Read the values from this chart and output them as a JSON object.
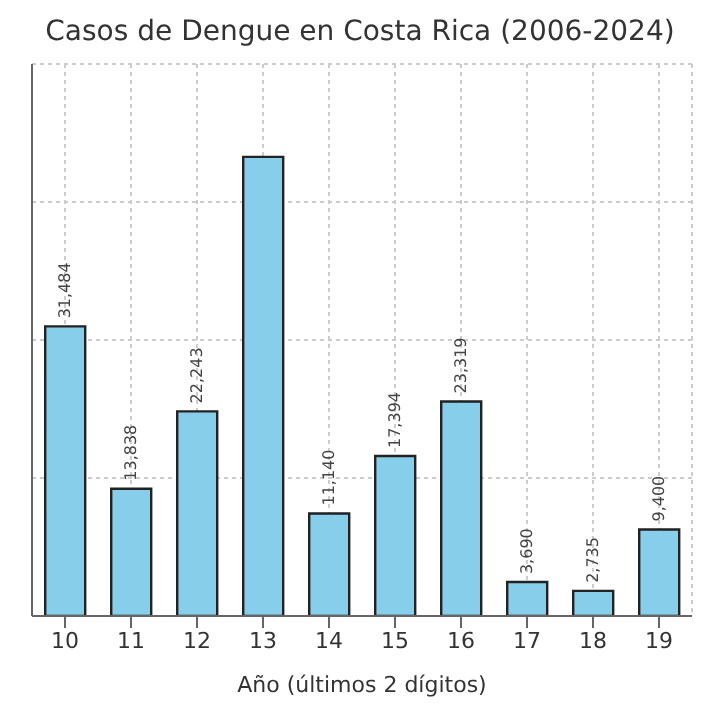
{
  "chart_data": {
    "type": "bar",
    "title": "Casos de Dengue en Costa Rica (2006-2024)",
    "xlabel": "Año (últimos 2 dígitos)",
    "categories": [
      "10",
      "11",
      "12",
      "13",
      "14",
      "15",
      "16",
      "17",
      "18",
      "19"
    ],
    "values": [
      31484,
      13838,
      22243,
      49900,
      11140,
      17394,
      23319,
      3690,
      2735,
      9400
    ],
    "value_labels": [
      "31,484",
      "13,838",
      "22,243",
      null,
      "11,140",
      "17,394",
      "23,319",
      "3,690",
      "2,735",
      "9,400"
    ],
    "color": "#87ceeb",
    "tick_labels": "x",
    "grid": true
  }
}
